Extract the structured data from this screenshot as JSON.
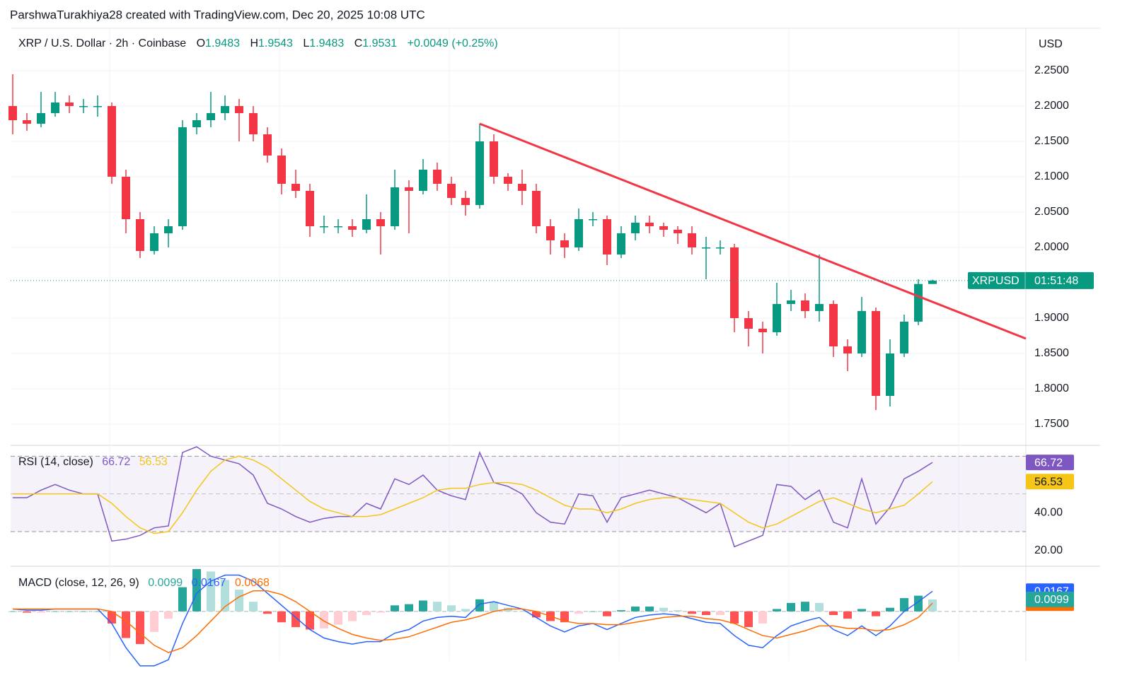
{
  "watermark": "ParshwaTurakhiya28 created with TradingView.com, Dec 20, 2025 10:08 UTC",
  "chart_data": [
    {
      "type": "candlestick",
      "title": "XRP / U.S. Dollar · 2h · Coinbase",
      "ohlc_labels": [
        "O",
        "H",
        "L",
        "C"
      ],
      "change_label": "+0.0049 (+0.25%)",
      "currency": "USD",
      "up_color": "#089981",
      "down_color": "#f23645",
      "xlim": [
        -0.15,
        71.6
      ],
      "ylim": [
        1.722,
        2.31
      ],
      "yticks": [
        {
          "value": 2.25,
          "label": "2.2500"
        },
        {
          "value": 2.2,
          "label": "2.2000"
        },
        {
          "value": 2.15,
          "label": "2.1500"
        },
        {
          "value": 2.1,
          "label": "2.1000"
        },
        {
          "value": 2.05,
          "label": "2.0500"
        },
        {
          "value": 2.0,
          "label": "2.0000"
        },
        {
          "value": 1.9,
          "label": "1.9000"
        },
        {
          "value": 1.85,
          "label": "1.8500"
        },
        {
          "value": 1.8,
          "label": "1.8000"
        },
        {
          "value": 1.75,
          "label": "1.7500"
        }
      ],
      "grid": true,
      "open": [
        2.2,
        2.18,
        2.175,
        2.19,
        2.205,
        2.2,
        2.2,
        2.2,
        2.1,
        2.04,
        1.995,
        2.02,
        2.03,
        2.17,
        2.18,
        2.19,
        2.2,
        2.19,
        2.16,
        2.13,
        2.09,
        2.08,
        2.03,
        2.03,
        2.03,
        2.025,
        2.04,
        2.03,
        2.085,
        2.08,
        2.11,
        2.09,
        2.07,
        2.06,
        2.15,
        2.1,
        2.09,
        2.08,
        2.03,
        2.01,
        2.0,
        2.04,
        2.04,
        1.99,
        2.02,
        2.035,
        2.03,
        2.025,
        2.02,
        2.0,
        2.0,
        2.0,
        1.9,
        1.885,
        1.88,
        1.92,
        1.925,
        1.91,
        1.92,
        1.86,
        1.85,
        1.91,
        1.79,
        1.85,
        1.895,
        1.9483
      ],
      "high": [
        2.245,
        2.19,
        2.22,
        2.22,
        2.215,
        2.21,
        2.215,
        2.205,
        2.11,
        2.05,
        2.03,
        2.04,
        2.18,
        2.19,
        2.22,
        2.215,
        2.21,
        2.2,
        2.17,
        2.14,
        2.11,
        2.09,
        2.045,
        2.04,
        2.04,
        2.075,
        2.05,
        2.11,
        2.095,
        2.125,
        2.12,
        2.1,
        2.08,
        2.175,
        2.16,
        2.105,
        2.11,
        2.09,
        2.04,
        2.02,
        2.055,
        2.05,
        2.045,
        2.03,
        2.045,
        2.045,
        2.035,
        2.03,
        2.03,
        2.015,
        2.01,
        2.005,
        1.91,
        1.895,
        1.95,
        1.94,
        1.935,
        1.99,
        1.925,
        1.87,
        1.93,
        1.915,
        1.87,
        1.905,
        1.955,
        1.9543
      ],
      "low": [
        2.16,
        2.165,
        2.17,
        2.185,
        2.19,
        2.19,
        2.185,
        2.09,
        2.02,
        1.985,
        1.99,
        2.0,
        2.025,
        2.16,
        2.17,
        2.18,
        2.15,
        2.15,
        2.12,
        2.075,
        2.07,
        2.015,
        2.02,
        2.02,
        2.015,
        2.02,
        1.99,
        2.025,
        2.02,
        2.075,
        2.08,
        2.06,
        2.045,
        2.055,
        2.09,
        2.08,
        2.06,
        2.02,
        1.99,
        1.985,
        1.995,
        2.03,
        1.975,
        1.985,
        2.01,
        2.02,
        2.015,
        2.005,
        1.99,
        1.955,
        1.99,
        1.88,
        1.86,
        1.85,
        1.875,
        1.91,
        1.9,
        1.895,
        1.845,
        1.825,
        1.845,
        1.77,
        1.775,
        1.845,
        1.89,
        1.9483
      ],
      "close": [
        2.18,
        2.175,
        2.19,
        2.205,
        2.2,
        2.2,
        2.2,
        2.1,
        2.04,
        1.995,
        2.02,
        2.03,
        2.17,
        2.18,
        2.19,
        2.2,
        2.19,
        2.16,
        2.13,
        2.09,
        2.08,
        2.03,
        2.03,
        2.03,
        2.025,
        2.04,
        2.03,
        2.085,
        2.08,
        2.11,
        2.09,
        2.07,
        2.06,
        2.15,
        2.1,
        2.09,
        2.08,
        2.03,
        2.01,
        2.0,
        2.04,
        2.04,
        1.99,
        2.02,
        2.035,
        2.03,
        2.025,
        2.02,
        2.0,
        2.0,
        2.0,
        1.9,
        1.885,
        1.88,
        1.92,
        1.925,
        1.91,
        1.92,
        1.86,
        1.85,
        1.91,
        1.79,
        1.85,
        1.895,
        1.9483,
        1.9531
      ],
      "trendline": {
        "x": [
          33,
          71.6
        ],
        "y": [
          2.175,
          1.871
        ],
        "color": "#f23645"
      },
      "last_price_label": {
        "symbol": "XRPUSD",
        "countdown": "01:51:48",
        "color": "#089981"
      }
    },
    {
      "type": "line",
      "title": "RSI (14, close)",
      "ylim": [
        12,
        73.5
      ],
      "yticks": [
        {
          "value": 40,
          "label": "40.00"
        },
        {
          "value": 20,
          "label": "20.00"
        }
      ],
      "bands": [
        70,
        50,
        30
      ],
      "band_color": "#7e57c2",
      "series": [
        {
          "color": "#7e57c2",
          "values": [
            48,
            48,
            52,
            55,
            52,
            50,
            50,
            25,
            26,
            28,
            32,
            33,
            72,
            75,
            70,
            68,
            66,
            60,
            45,
            42,
            38,
            35,
            37,
            38,
            38,
            45,
            42,
            58,
            55,
            60,
            52,
            49,
            47,
            72,
            56,
            54,
            50,
            40,
            35,
            34,
            50,
            49,
            35,
            48,
            50,
            52,
            50,
            48,
            44,
            40,
            45,
            22,
            25,
            28,
            55,
            54,
            47,
            52,
            35,
            32,
            58,
            34,
            43,
            58,
            62,
            66.72
          ]
        },
        {
          "color": "#f5c518",
          "values": [
            50,
            50,
            50,
            50,
            50,
            50,
            50,
            45,
            38,
            32,
            29,
            30,
            40,
            52,
            62,
            68,
            70,
            68,
            64,
            58,
            52,
            46,
            42,
            40,
            38,
            38,
            39,
            42,
            45,
            48,
            52,
            53,
            53,
            55,
            56,
            56,
            55,
            52,
            48,
            44,
            42,
            42,
            40,
            42,
            45,
            47,
            48,
            48,
            47,
            46,
            45,
            40,
            35,
            32,
            34,
            38,
            42,
            46,
            48,
            45,
            42,
            40,
            42,
            44,
            50,
            56.53
          ]
        }
      ]
    },
    {
      "type": "macd",
      "title": "MACD (close, 12, 26, 9)",
      "ylim": [
        -0.041,
        0.035
      ],
      "histogram": {
        "colors": [
          "#26a69a",
          "#b2dfdb",
          "#ffcdd2",
          "#ff5252"
        ],
        "values": [
          0,
          -0.001,
          -0.001,
          0,
          0,
          0,
          0,
          -0.01,
          -0.022,
          -0.027,
          -0.017,
          -0.006,
          0.02,
          0.035,
          0.033,
          0.026,
          0.018,
          0.008,
          -0.002,
          -0.009,
          -0.013,
          -0.015,
          -0.014,
          -0.011,
          -0.008,
          -0.003,
          -0.001,
          0.005,
          0.006,
          0.009,
          0.008,
          0.005,
          0.002,
          0.01,
          0.008,
          0.003,
          0.0,
          -0.005,
          -0.008,
          -0.009,
          -0.002,
          0.0,
          -0.004,
          0.001,
          0.004,
          0.004,
          0.003,
          0.001,
          -0.002,
          -0.003,
          -0.003,
          -0.01,
          -0.013,
          -0.01,
          0.002,
          0.007,
          0.008,
          0.007,
          -0.003,
          -0.006,
          0.002,
          -0.004,
          0.003,
          0.011,
          0.013,
          0.0099
        ]
      },
      "series": [
        {
          "color": "#2962ff",
          "values": [
            0.002,
            0.001,
            0.001,
            0.002,
            0.002,
            0.002,
            0.002,
            -0.01,
            -0.03,
            -0.045,
            -0.045,
            -0.04,
            -0.01,
            0.015,
            0.025,
            0.03,
            0.03,
            0.025,
            0.015,
            0.005,
            -0.005,
            -0.015,
            -0.022,
            -0.025,
            -0.027,
            -0.025,
            -0.025,
            -0.018,
            -0.015,
            -0.008,
            -0.005,
            -0.004,
            -0.005,
            0.006,
            0.008,
            0.005,
            0.002,
            -0.005,
            -0.012,
            -0.017,
            -0.012,
            -0.01,
            -0.015,
            -0.01,
            -0.005,
            -0.003,
            -0.002,
            -0.003,
            -0.006,
            -0.009,
            -0.01,
            -0.02,
            -0.028,
            -0.03,
            -0.02,
            -0.012,
            -0.008,
            -0.005,
            -0.015,
            -0.02,
            -0.012,
            -0.02,
            -0.012,
            0.0,
            0.008,
            0.0167
          ]
        },
        {
          "color": "#ff6d00",
          "values": [
            0.002,
            0.002,
            0.002,
            0.002,
            0.002,
            0.002,
            0.002,
            0.0,
            -0.008,
            -0.018,
            -0.028,
            -0.034,
            -0.03,
            -0.02,
            -0.008,
            0.004,
            0.012,
            0.017,
            0.017,
            0.014,
            0.008,
            0.0,
            -0.008,
            -0.014,
            -0.019,
            -0.022,
            -0.024,
            -0.023,
            -0.021,
            -0.017,
            -0.013,
            -0.009,
            -0.007,
            -0.004,
            0.0,
            0.002,
            0.002,
            0.0,
            -0.004,
            -0.008,
            -0.01,
            -0.01,
            -0.011,
            -0.011,
            -0.009,
            -0.007,
            -0.005,
            -0.004,
            -0.004,
            -0.006,
            -0.007,
            -0.01,
            -0.015,
            -0.02,
            -0.022,
            -0.019,
            -0.016,
            -0.012,
            -0.012,
            -0.014,
            -0.014,
            -0.016,
            -0.015,
            -0.011,
            -0.005,
            0.0068
          ]
        }
      ]
    }
  ]
}
